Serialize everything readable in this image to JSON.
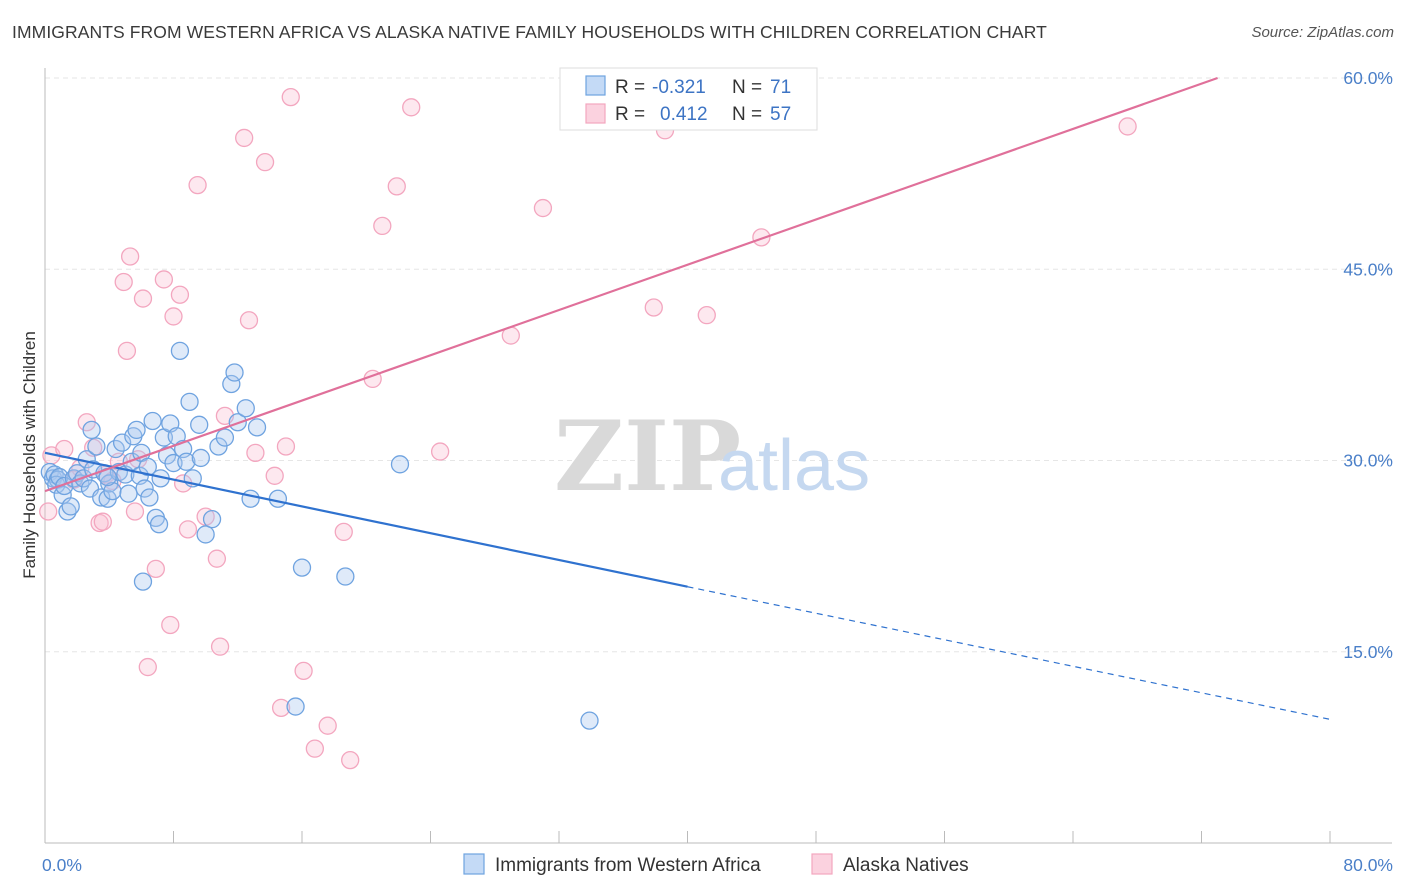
{
  "title": "IMMIGRANTS FROM WESTERN AFRICA VS ALASKA NATIVE FAMILY HOUSEHOLDS WITH CHILDREN CORRELATION CHART",
  "source": "Source: ZipAtlas.com",
  "watermark": {
    "zip": "ZIP",
    "atlas": "atlas"
  },
  "colors": {
    "blue": "#6fa3e0",
    "blue_line": "#2f72cf",
    "pink": "#f3a6bf",
    "pink_line": "#e0709a",
    "tick": "#4a7fc8",
    "grid": "#e6e6e6"
  },
  "legend": {
    "r_label": "R =",
    "n_label": "N =",
    "rows": [
      {
        "r": "-0.321",
        "n": "71"
      },
      {
        "r": "0.412",
        "n": "57"
      }
    ]
  },
  "chart_data": {
    "type": "scatter",
    "title": "IMMIGRANTS FROM WESTERN AFRICA VS ALASKA NATIVE FAMILY HOUSEHOLDS WITH CHILDREN CORRELATION CHART",
    "xlabel": "",
    "ylabel": "Family Households with Children",
    "xlim": [
      0,
      80
    ],
    "ylim": [
      0,
      60
    ],
    "x_tick_labels": [
      "0.0%",
      "80.0%"
    ],
    "y_ticks": [
      15,
      30,
      45,
      60
    ],
    "y_tick_labels": [
      "15.0%",
      "30.0%",
      "45.0%",
      "60.0%"
    ],
    "grid": true,
    "legend_position": "top-center",
    "series": [
      {
        "name": "Immigrants from Western Africa",
        "color": "#6fa3e0",
        "r": -0.321,
        "n": 71,
        "trend": {
          "x0": 0.0,
          "y0": 30.6,
          "x1": 40.0,
          "y1": 20.1,
          "dashed_to_x": 80.0,
          "dashed_to_y": 9.7
        },
        "points": [
          [
            0.3,
            29.1
          ],
          [
            0.5,
            28.6
          ],
          [
            0.6,
            28.9
          ],
          [
            0.8,
            28.5
          ],
          [
            0.7,
            28.1
          ],
          [
            0.9,
            28.7
          ],
          [
            1.1,
            27.3
          ],
          [
            1.2,
            28.0
          ],
          [
            1.4,
            26.0
          ],
          [
            1.6,
            26.4
          ],
          [
            1.8,
            28.6
          ],
          [
            2.0,
            29.0
          ],
          [
            2.2,
            28.2
          ],
          [
            2.4,
            28.6
          ],
          [
            2.6,
            30.1
          ],
          [
            2.8,
            27.8
          ],
          [
            2.9,
            32.4
          ],
          [
            3.0,
            29.3
          ],
          [
            3.2,
            31.1
          ],
          [
            3.5,
            27.1
          ],
          [
            3.7,
            29.0
          ],
          [
            3.9,
            27.0
          ],
          [
            4.0,
            28.2
          ],
          [
            4.2,
            27.6
          ],
          [
            4.4,
            30.9
          ],
          [
            4.6,
            29.1
          ],
          [
            4.8,
            31.4
          ],
          [
            5.0,
            28.9
          ],
          [
            5.2,
            27.4
          ],
          [
            5.4,
            29.9
          ],
          [
            5.5,
            31.9
          ],
          [
            5.7,
            32.4
          ],
          [
            5.9,
            28.8
          ],
          [
            6.0,
            30.6
          ],
          [
            6.2,
            27.8
          ],
          [
            6.4,
            29.5
          ],
          [
            6.5,
            27.1
          ],
          [
            6.7,
            33.1
          ],
          [
            6.9,
            25.5
          ],
          [
            7.1,
            25.0
          ],
          [
            7.2,
            28.6
          ],
          [
            7.4,
            31.8
          ],
          [
            7.6,
            30.4
          ],
          [
            7.8,
            32.9
          ],
          [
            8.0,
            29.8
          ],
          [
            8.2,
            31.9
          ],
          [
            8.4,
            38.6
          ],
          [
            8.6,
            30.9
          ],
          [
            8.8,
            29.9
          ],
          [
            9.0,
            34.6
          ],
          [
            9.2,
            28.6
          ],
          [
            9.6,
            32.8
          ],
          [
            10.0,
            24.2
          ],
          [
            10.4,
            25.4
          ],
          [
            10.8,
            31.1
          ],
          [
            11.2,
            31.8
          ],
          [
            11.6,
            36.0
          ],
          [
            11.8,
            36.9
          ],
          [
            12.0,
            33.0
          ],
          [
            12.5,
            34.1
          ],
          [
            12.8,
            27.0
          ],
          [
            13.2,
            32.6
          ],
          [
            14.5,
            27.0
          ],
          [
            15.6,
            10.7
          ],
          [
            16.0,
            21.6
          ],
          [
            18.7,
            20.9
          ],
          [
            22.1,
            29.7
          ],
          [
            9.7,
            30.2
          ],
          [
            6.1,
            20.5
          ],
          [
            3.9,
            28.7
          ],
          [
            33.9,
            9.6
          ]
        ]
      },
      {
        "name": "Alaska Natives",
        "color": "#f3a6bf",
        "r": 0.412,
        "n": 57,
        "trend": {
          "x0": 0.0,
          "y0": 27.6,
          "x1": 73.0,
          "y1": 60.0
        },
        "points": [
          [
            0.2,
            26.0
          ],
          [
            0.4,
            30.4
          ],
          [
            1.2,
            30.9
          ],
          [
            1.8,
            28.5
          ],
          [
            2.2,
            29.4
          ],
          [
            2.6,
            33.0
          ],
          [
            3.0,
            31.0
          ],
          [
            3.4,
            25.1
          ],
          [
            3.6,
            25.2
          ],
          [
            3.8,
            28.9
          ],
          [
            4.2,
            28.4
          ],
          [
            4.6,
            29.9
          ],
          [
            4.9,
            44.0
          ],
          [
            5.1,
            38.6
          ],
          [
            5.3,
            46.0
          ],
          [
            5.6,
            26.0
          ],
          [
            5.8,
            30.1
          ],
          [
            6.1,
            42.7
          ],
          [
            6.4,
            13.8
          ],
          [
            6.9,
            21.5
          ],
          [
            7.4,
            44.2
          ],
          [
            7.8,
            17.1
          ],
          [
            8.0,
            41.3
          ],
          [
            8.4,
            43.0
          ],
          [
            8.6,
            28.2
          ],
          [
            8.9,
            24.6
          ],
          [
            9.5,
            51.6
          ],
          [
            10.0,
            25.6
          ],
          [
            10.7,
            22.3
          ],
          [
            10.9,
            15.4
          ],
          [
            11.2,
            33.5
          ],
          [
            12.4,
            55.3
          ],
          [
            12.7,
            41.0
          ],
          [
            13.1,
            30.6
          ],
          [
            13.7,
            53.4
          ],
          [
            14.3,
            28.8
          ],
          [
            14.7,
            10.6
          ],
          [
            15.0,
            31.1
          ],
          [
            15.3,
            58.5
          ],
          [
            16.1,
            13.5
          ],
          [
            16.8,
            7.4
          ],
          [
            17.6,
            9.2
          ],
          [
            18.6,
            24.4
          ],
          [
            19.0,
            6.5
          ],
          [
            20.4,
            36.4
          ],
          [
            21.0,
            48.4
          ],
          [
            21.9,
            51.5
          ],
          [
            22.8,
            57.7
          ],
          [
            24.6,
            30.7
          ],
          [
            29.0,
            39.8
          ],
          [
            31.0,
            49.8
          ],
          [
            33.1,
            56.8
          ],
          [
            37.9,
            42.0
          ],
          [
            38.6,
            55.9
          ],
          [
            41.2,
            41.4
          ],
          [
            44.6,
            47.5
          ],
          [
            67.4,
            56.2
          ]
        ]
      }
    ]
  }
}
